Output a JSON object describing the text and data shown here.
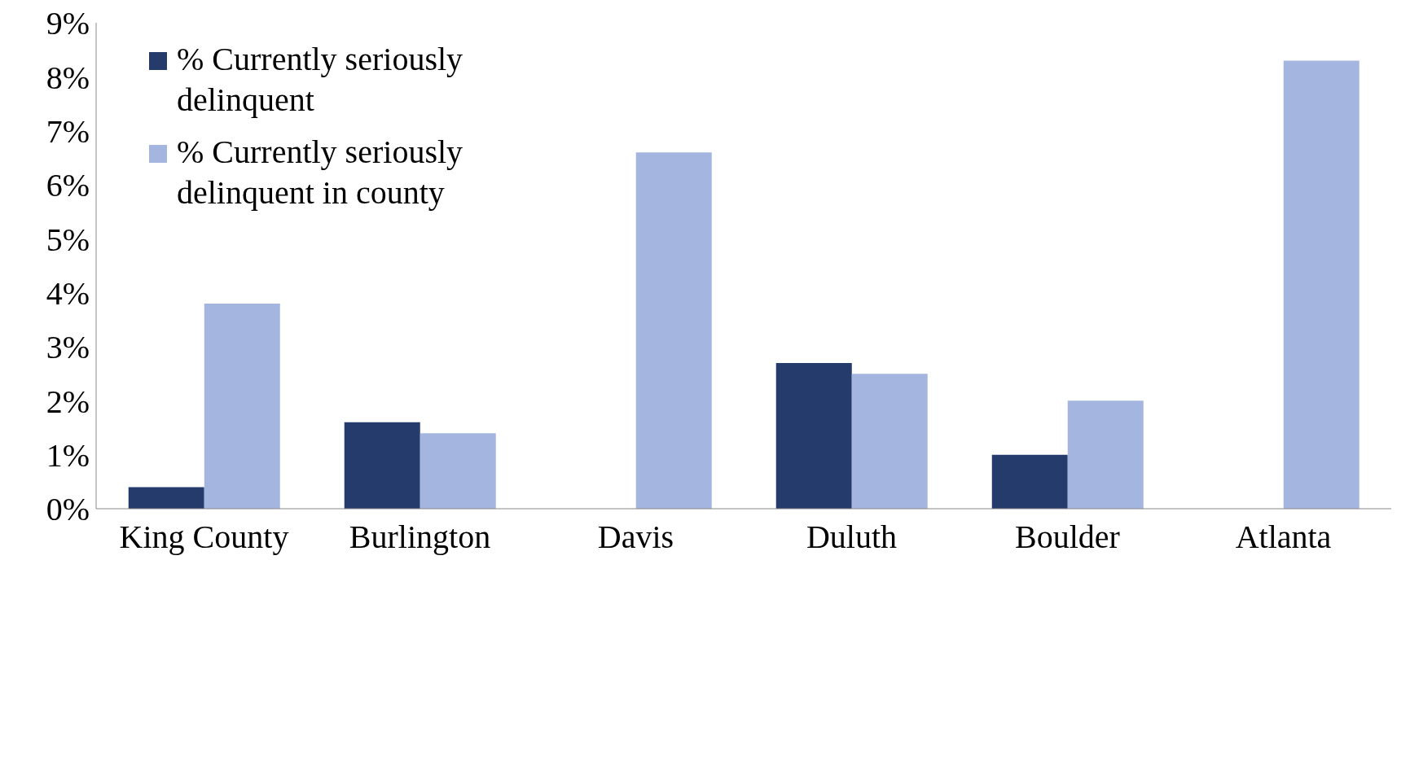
{
  "chart_data": {
    "type": "bar",
    "categories": [
      "King County",
      "Burlington",
      "Davis",
      "Duluth",
      "Boulder",
      "Atlanta"
    ],
    "series": [
      {
        "name": "% Currently seriously delinquent",
        "color": "#253b6b",
        "values": [
          0.4,
          1.6,
          0,
          2.7,
          1.0,
          0
        ]
      },
      {
        "name": "% Currently seriously delinquent in county",
        "color": "#a4b6df",
        "values": [
          3.8,
          1.4,
          6.6,
          2.5,
          2.0,
          8.3
        ]
      }
    ],
    "ylim": [
      0,
      9
    ],
    "yticks": [
      {
        "value": 0,
        "label": "0%"
      },
      {
        "value": 1,
        "label": "1%"
      },
      {
        "value": 2,
        "label": "2%"
      },
      {
        "value": 3,
        "label": "3%"
      },
      {
        "value": 4,
        "label": "4%"
      },
      {
        "value": 5,
        "label": "5%"
      },
      {
        "value": 6,
        "label": "6%"
      },
      {
        "value": 7,
        "label": "7%"
      },
      {
        "value": 8,
        "label": "8%"
      },
      {
        "value": 9,
        "label": "9%"
      }
    ],
    "grid": false,
    "legend": "top left"
  }
}
